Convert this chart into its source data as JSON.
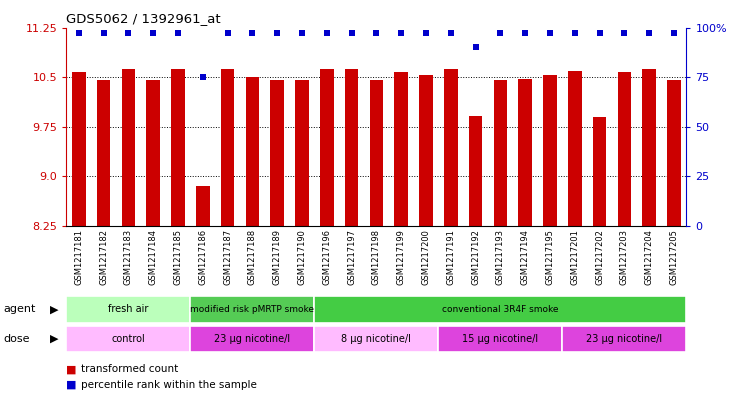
{
  "title": "GDS5062 / 1392961_at",
  "samples": [
    "GSM1217181",
    "GSM1217182",
    "GSM1217183",
    "GSM1217184",
    "GSM1217185",
    "GSM1217186",
    "GSM1217187",
    "GSM1217188",
    "GSM1217189",
    "GSM1217190",
    "GSM1217196",
    "GSM1217197",
    "GSM1217198",
    "GSM1217199",
    "GSM1217200",
    "GSM1217191",
    "GSM1217192",
    "GSM1217193",
    "GSM1217194",
    "GSM1217195",
    "GSM1217201",
    "GSM1217202",
    "GSM1217203",
    "GSM1217204",
    "GSM1217205"
  ],
  "bar_values": [
    10.58,
    10.46,
    10.63,
    10.46,
    10.63,
    8.86,
    10.63,
    10.5,
    10.46,
    10.46,
    10.62,
    10.63,
    10.46,
    10.57,
    10.53,
    10.62,
    9.91,
    10.46,
    10.47,
    10.53,
    10.59,
    9.9,
    10.57,
    10.62,
    10.46
  ],
  "percentile_values": [
    97,
    97,
    97,
    97,
    97,
    75,
    97,
    97,
    97,
    97,
    97,
    97,
    97,
    97,
    97,
    97,
    90,
    97,
    97,
    97,
    97,
    97,
    97,
    97,
    97
  ],
  "ylim_left": [
    8.25,
    11.25
  ],
  "ylim_right": [
    0,
    100
  ],
  "yticks_left": [
    8.25,
    9.0,
    9.75,
    10.5,
    11.25
  ],
  "yticks_right": [
    0,
    25,
    50,
    75,
    100
  ],
  "bar_color": "#cc0000",
  "dot_color": "#0000cc",
  "background_color": "#ffffff",
  "agent_groups": [
    {
      "label": "fresh air",
      "start": 0,
      "end": 5,
      "color": "#bbffbb"
    },
    {
      "label": "modified risk pMRTP smoke",
      "start": 5,
      "end": 10,
      "color": "#55cc55"
    },
    {
      "label": "conventional 3R4F smoke",
      "start": 10,
      "end": 25,
      "color": "#44cc44"
    }
  ],
  "dose_groups": [
    {
      "label": "control",
      "start": 0,
      "end": 5,
      "color": "#ffbbff"
    },
    {
      "label": "23 μg nicotine/l",
      "start": 5,
      "end": 10,
      "color": "#dd44dd"
    },
    {
      "label": "8 μg nicotine/l",
      "start": 10,
      "end": 15,
      "color": "#ffbbff"
    },
    {
      "label": "15 μg nicotine/l",
      "start": 15,
      "end": 20,
      "color": "#dd44dd"
    },
    {
      "label": "23 μg nicotine/l",
      "start": 20,
      "end": 25,
      "color": "#dd44dd"
    }
  ],
  "agent_label": "agent",
  "dose_label": "dose",
  "legend_items": [
    {
      "color": "#cc0000",
      "text": "transformed count"
    },
    {
      "color": "#0000cc",
      "text": "percentile rank within the sample"
    }
  ]
}
